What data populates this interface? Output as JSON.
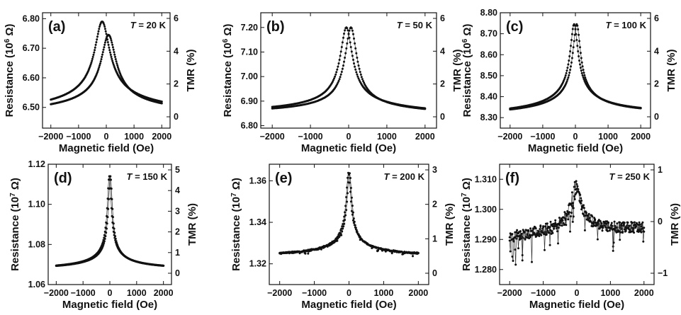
{
  "figure": {
    "xlabel": "Magnetic field (Oe)",
    "ylabel_right": "TMR (%)"
  },
  "chart_data": [
    {
      "type": "scatter",
      "panel": "(a)",
      "temperature_label": "T = 20 K",
      "xlabel": "Magnetic field (Oe)",
      "ylabel": "Resistance (10^6 Ω)",
      "ylabel_right": "TMR (%)",
      "xlim": [
        -2300,
        2300
      ],
      "ylim": [
        6.43,
        6.82
      ],
      "xticks": [
        -2000,
        -1000,
        0,
        1000,
        2000
      ],
      "yticks": [
        6.5,
        6.6,
        6.7,
        6.8
      ],
      "yticks_right": [
        0,
        2,
        4,
        6
      ],
      "peak_sweep_down": {
        "x": -150,
        "y": 6.79
      },
      "peak_sweep_up": {
        "x": 80,
        "y": 6.745
      },
      "baseline": {
        "y_at_minus_2000": 6.465,
        "y_at_2000": 6.465
      },
      "shoulder_sweep_down": 6.625,
      "shoulder_sweep_up": 6.595,
      "width": 280
    },
    {
      "type": "scatter",
      "panel": "(b)",
      "temperature_label": "T = 50 K",
      "xlabel": "Magnetic field (Oe)",
      "ylabel": "Resistance (10^6 Ω)",
      "ylabel_right": "TMR (%)",
      "xlim": [
        -2300,
        2300
      ],
      "ylim": [
        6.79,
        7.26
      ],
      "xticks": [
        -2000,
        -1000,
        0,
        1000,
        2000
      ],
      "yticks": [
        6.8,
        6.9,
        7.0,
        7.1,
        7.2
      ],
      "yticks_right": [
        0,
        2,
        4,
        6
      ],
      "peak_sweep_down": {
        "x": -60,
        "y": 7.2
      },
      "peak_sweep_up": {
        "x": 60,
        "y": 7.2
      },
      "baseline": {
        "y_at_minus_2000": 6.84,
        "y_at_2000": 6.835
      },
      "shoulder_sweep_down": 6.985,
      "shoulder_sweep_up": 6.965,
      "width": 170
    },
    {
      "type": "scatter",
      "panel": "(c)",
      "temperature_label": "T = 100 K",
      "xlabel": "Magnetic field (Oe)",
      "ylabel": "Resistance (10^6 Ω)",
      "ylabel_right": "TMR (%)",
      "xlim": [
        -2300,
        2300
      ],
      "ylim": [
        8.25,
        8.8
      ],
      "xticks": [
        -2000,
        -1000,
        0,
        1000,
        2000
      ],
      "yticks": [
        8.3,
        8.4,
        8.5,
        8.6,
        8.7,
        8.8
      ],
      "yticks_right": [
        0,
        2,
        4,
        6
      ],
      "peak_sweep_down": {
        "x": -40,
        "y": 8.745
      },
      "peak_sweep_up": {
        "x": 40,
        "y": 8.745
      },
      "baseline": {
        "y_at_minus_2000": 8.3,
        "y_at_2000": 8.305
      },
      "shoulder_sweep_down": 8.54,
      "shoulder_sweep_up": 8.52,
      "width": 120
    },
    {
      "type": "scatter",
      "panel": "(d)",
      "temperature_label": "T = 150 K",
      "xlabel": "Magnetic field (Oe)",
      "ylabel": "Resistance (10^7 Ω)",
      "ylabel_right": "TMR (%)",
      "xlim": [
        -2300,
        2300
      ],
      "ylim": [
        1.06,
        1.12
      ],
      "xticks": [
        -2000,
        -1000,
        0,
        1000,
        2000
      ],
      "yticks": [
        1.06,
        1.08,
        1.1,
        1.12
      ],
      "yticks_right": [
        0,
        1,
        2,
        3,
        4,
        5
      ],
      "peak_sweep_down": {
        "x": -20,
        "y": 1.114
      },
      "peak_sweep_up": {
        "x": 20,
        "y": 1.114
      },
      "baseline": {
        "y_at_minus_2000": 1.067,
        "y_at_2000": 1.067
      },
      "shoulder_sweep_down": 1.0865,
      "shoulder_sweep_up": 1.0855,
      "width": 80
    },
    {
      "type": "scatter",
      "panel": "(e)",
      "temperature_label": "T = 200 K",
      "xlabel": "Magnetic field (Oe)",
      "ylabel": "Resistance (10^7 Ω)",
      "ylabel_right": "TMR (%)",
      "xlim": [
        -2300,
        2300
      ],
      "ylim": [
        1.31,
        1.368
      ],
      "xticks": [
        -2000,
        -1000,
        0,
        1000,
        2000
      ],
      "yticks": [
        1.32,
        1.34,
        1.36
      ],
      "yticks_right": [
        0,
        1,
        2,
        3
      ],
      "peak_sweep_down": {
        "x": -15,
        "y": 1.364
      },
      "peak_sweep_up": {
        "x": 15,
        "y": 1.364
      },
      "baseline": {
        "y_at_minus_2000": 1.323,
        "y_at_2000": 1.323
      },
      "shoulder_sweep_down": 1.3425,
      "shoulder_sweep_up": 1.3415,
      "width": 70
    },
    {
      "type": "scatter",
      "panel": "(f)",
      "temperature_label": "T = 250 K",
      "xlabel": "Magnetic field (Oe)",
      "ylabel": "Resistance (10^7 Ω)",
      "ylabel_right": "TMR (%)",
      "xlim": [
        -2300,
        2300
      ],
      "ylim": [
        1.275,
        1.315
      ],
      "xticks": [
        -2000,
        -1000,
        0,
        1000,
        2000
      ],
      "yticks": [
        1.28,
        1.29,
        1.3,
        1.31
      ],
      "yticks_right": [
        -1,
        0,
        1
      ],
      "peak_sweep_down": {
        "x": -30,
        "y": 1.308
      },
      "peak_sweep_up": {
        "x": 30,
        "y": 1.306
      },
      "baseline": {
        "y_at_minus_2000": 1.289,
        "y_at_2000": 1.293
      },
      "shoulder_sweep_down": 1.2985,
      "shoulder_sweep_up": 1.2975,
      "width": 150
    }
  ]
}
